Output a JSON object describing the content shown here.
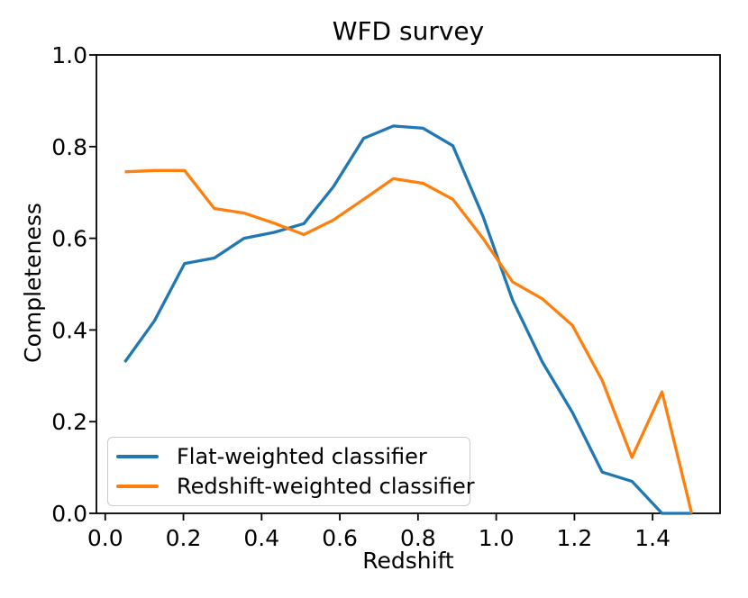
{
  "figure": {
    "title": "WFD survey"
  },
  "chart_data": {
    "type": "line",
    "title": "WFD survey",
    "xlabel": "Redshift",
    "ylabel": "Completeness",
    "xlim": [
      -0.0225,
      1.5725
    ],
    "ylim": [
      0.0,
      1.0
    ],
    "x_ticks": [
      0.0,
      0.2,
      0.4,
      0.6,
      0.8,
      1.0,
      1.2,
      1.4
    ],
    "y_ticks": [
      0.0,
      0.2,
      0.4,
      0.6,
      0.8,
      1.0
    ],
    "grid": false,
    "legend_position": "lower left",
    "x": [
      0.05,
      0.126,
      0.203,
      0.279,
      0.355,
      0.432,
      0.508,
      0.584,
      0.661,
      0.737,
      0.813,
      0.889,
      0.966,
      1.042,
      1.118,
      1.195,
      1.271,
      1.347,
      1.424,
      1.5
    ],
    "series": [
      {
        "name": "Flat-weighted classifier",
        "color": "#1f77b4",
        "values": [
          0.33,
          0.42,
          0.545,
          0.557,
          0.6,
          0.613,
          0.632,
          0.713,
          0.818,
          0.845,
          0.84,
          0.802,
          0.648,
          0.465,
          0.33,
          0.22,
          0.09,
          0.07,
          0.0,
          0.0
        ]
      },
      {
        "name": "Redshift-weighted classifier",
        "color": "#ff7f0e",
        "values": [
          0.745,
          0.748,
          0.748,
          0.665,
          0.655,
          0.633,
          0.608,
          0.64,
          0.685,
          0.73,
          0.72,
          0.685,
          0.6,
          0.505,
          0.468,
          0.41,
          0.29,
          0.122,
          0.265,
          0.0
        ]
      }
    ],
    "axis_color": "#000000",
    "tick_label_format_decimals": 1
  }
}
